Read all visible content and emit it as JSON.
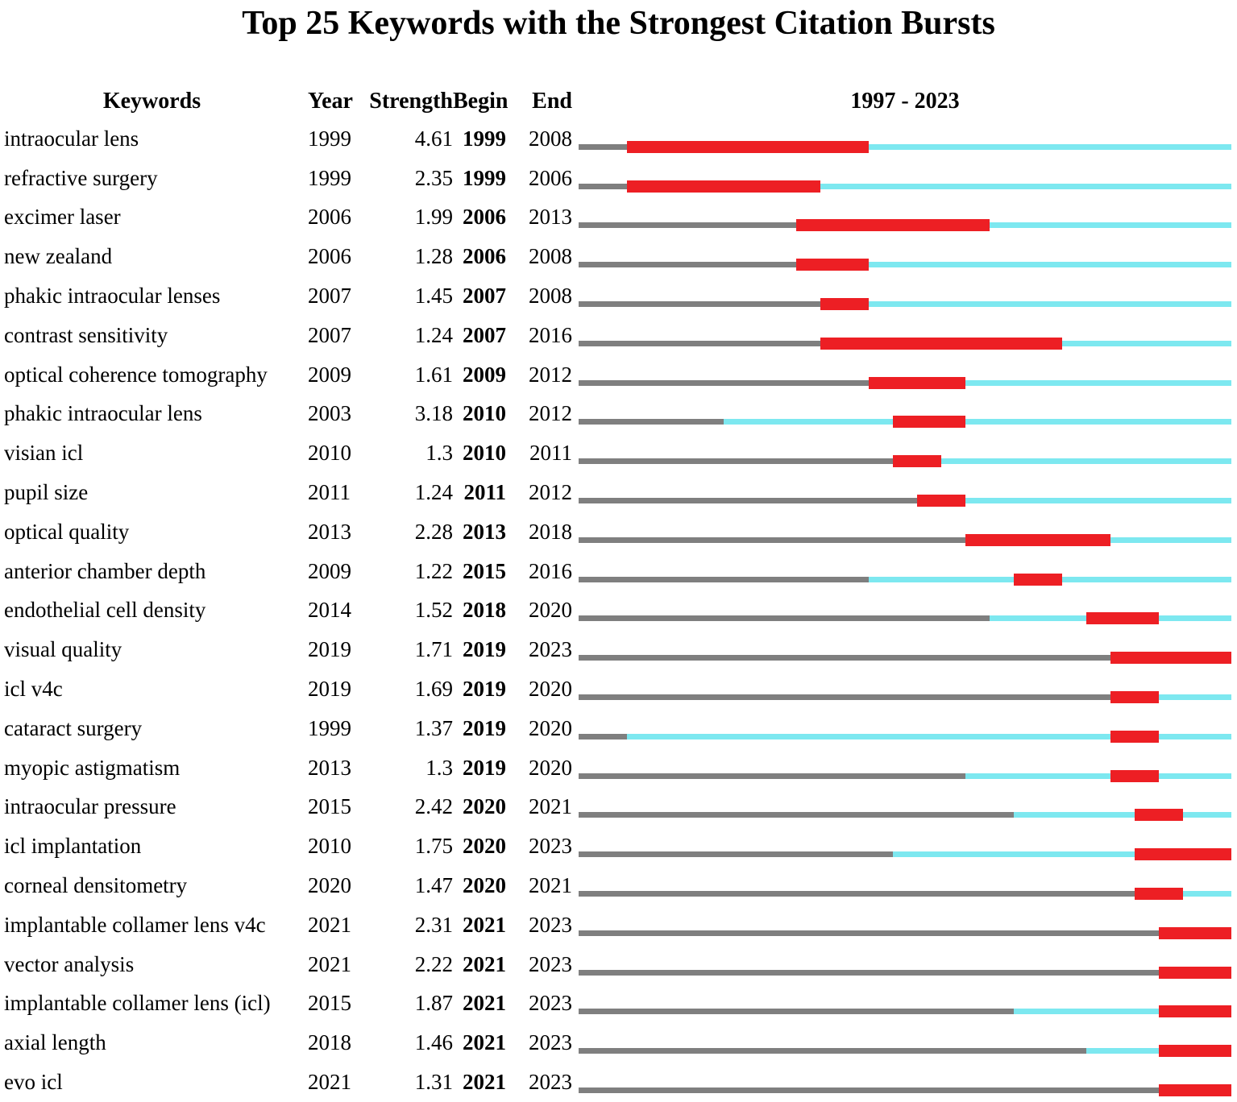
{
  "title": "Top 25 Keywords with the Strongest Citation Bursts",
  "columns": {
    "keywords": "Keywords",
    "year": "Year",
    "strength": "Strength",
    "begin": "Begin",
    "end": "End",
    "timeline": "1997 - 2023"
  },
  "colors": {
    "pre_period": "#7f7f7f",
    "active_period": "#7de8f0",
    "burst_period": "#ed1f24"
  },
  "chart_data": {
    "type": "bar",
    "subtype": "citation-burst-timeline",
    "x_range": [
      1997,
      2023
    ],
    "timeline_label": "1997 - 2023",
    "legend": {
      "gray": "before keyword first appearance",
      "cyan": "keyword active, no burst",
      "red": "citation burst interval"
    },
    "rows": [
      {
        "keyword": "intraocular lens",
        "year": 1999,
        "strength": "4.61",
        "begin": 1999,
        "end": 2008
      },
      {
        "keyword": "refractive surgery",
        "year": 1999,
        "strength": "2.35",
        "begin": 1999,
        "end": 2006
      },
      {
        "keyword": "excimer laser",
        "year": 2006,
        "strength": "1.99",
        "begin": 2006,
        "end": 2013
      },
      {
        "keyword": "new zealand",
        "year": 2006,
        "strength": "1.28",
        "begin": 2006,
        "end": 2008
      },
      {
        "keyword": "phakic intraocular lenses",
        "year": 2007,
        "strength": "1.45",
        "begin": 2007,
        "end": 2008
      },
      {
        "keyword": "contrast sensitivity",
        "year": 2007,
        "strength": "1.24",
        "begin": 2007,
        "end": 2016
      },
      {
        "keyword": "optical coherence tomography",
        "year": 2009,
        "strength": "1.61",
        "begin": 2009,
        "end": 2012
      },
      {
        "keyword": "phakic intraocular lens",
        "year": 2003,
        "strength": "3.18",
        "begin": 2010,
        "end": 2012
      },
      {
        "keyword": "visian icl",
        "year": 2010,
        "strength": "1.3",
        "begin": 2010,
        "end": 2011
      },
      {
        "keyword": "pupil size",
        "year": 2011,
        "strength": "1.24",
        "begin": 2011,
        "end": 2012
      },
      {
        "keyword": "optical quality",
        "year": 2013,
        "strength": "2.28",
        "begin": 2013,
        "end": 2018
      },
      {
        "keyword": "anterior chamber depth",
        "year": 2009,
        "strength": "1.22",
        "begin": 2015,
        "end": 2016
      },
      {
        "keyword": "endothelial cell density",
        "year": 2014,
        "strength": "1.52",
        "begin": 2018,
        "end": 2020
      },
      {
        "keyword": "visual quality",
        "year": 2019,
        "strength": "1.71",
        "begin": 2019,
        "end": 2023
      },
      {
        "keyword": "icl v4c",
        "year": 2019,
        "strength": "1.69",
        "begin": 2019,
        "end": 2020
      },
      {
        "keyword": "cataract surgery",
        "year": 1999,
        "strength": "1.37",
        "begin": 2019,
        "end": 2020
      },
      {
        "keyword": "myopic astigmatism",
        "year": 2013,
        "strength": "1.3",
        "begin": 2019,
        "end": 2020
      },
      {
        "keyword": "intraocular pressure",
        "year": 2015,
        "strength": "2.42",
        "begin": 2020,
        "end": 2021
      },
      {
        "keyword": "icl implantation",
        "year": 2010,
        "strength": "1.75",
        "begin": 2020,
        "end": 2023
      },
      {
        "keyword": "corneal densitometry",
        "year": 2020,
        "strength": "1.47",
        "begin": 2020,
        "end": 2021
      },
      {
        "keyword": "implantable collamer lens v4c",
        "year": 2021,
        "strength": "2.31",
        "begin": 2021,
        "end": 2023
      },
      {
        "keyword": "vector analysis",
        "year": 2021,
        "strength": "2.22",
        "begin": 2021,
        "end": 2023
      },
      {
        "keyword": "implantable collamer lens (icl)",
        "year": 2015,
        "strength": "1.87",
        "begin": 2021,
        "end": 2023
      },
      {
        "keyword": "axial length",
        "year": 2018,
        "strength": "1.46",
        "begin": 2021,
        "end": 2023
      },
      {
        "keyword": "evo icl",
        "year": 2021,
        "strength": "1.31",
        "begin": 2021,
        "end": 2023
      }
    ]
  }
}
